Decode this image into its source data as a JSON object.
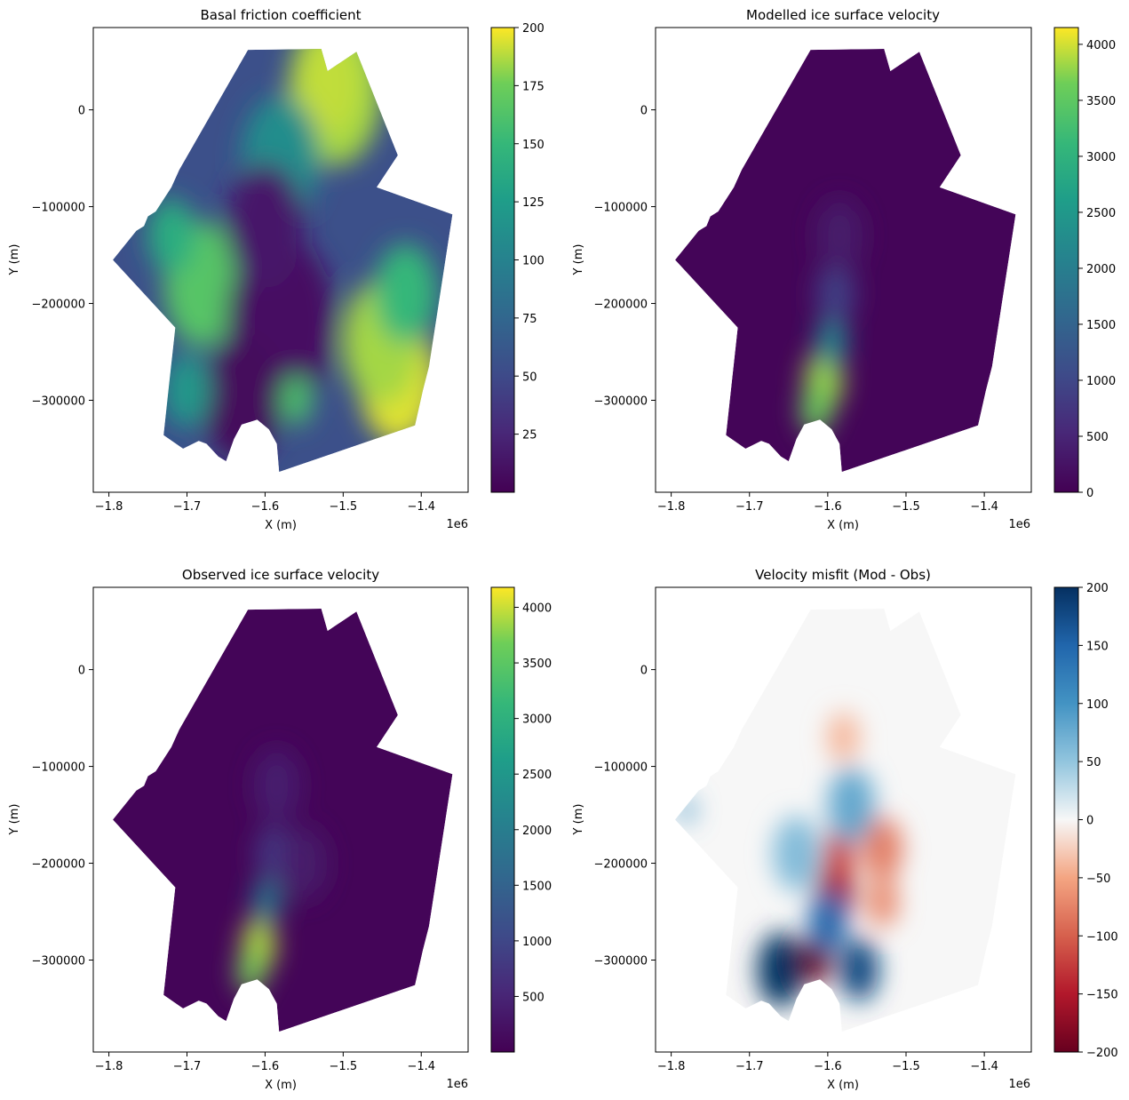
{
  "chart_data": [
    {
      "type": "heatmap",
      "title": "Basal friction coefficient",
      "xlabel": "X (m)",
      "ylabel": "Y (m)",
      "x_offset_label": "1e6",
      "xlim": [
        -1.82,
        -1.34
      ],
      "ylim": [
        -395000,
        85000
      ],
      "xticks": [
        -1.8,
        -1.7,
        -1.6,
        -1.5,
        -1.4
      ],
      "xtick_labels": [
        "−1.8",
        "−1.7",
        "−1.6",
        "−1.5",
        "−1.4"
      ],
      "yticks": [
        0,
        -100000,
        -200000,
        -300000
      ],
      "ytick_labels": [
        "0",
        "−100000",
        "−200000",
        "−300000"
      ],
      "colormap": "viridis",
      "cmin": 0,
      "cmax": 200,
      "colorbar_ticks": [
        25,
        50,
        75,
        100,
        125,
        150,
        175,
        200
      ],
      "colorbar_tick_labels": [
        "25",
        "50",
        "75",
        "100",
        "125",
        "150",
        "175",
        "200"
      ],
      "base_value": 55,
      "features": [
        {
          "x": -1.51,
          "y": 20000,
          "v": 185,
          "r": 0.06
        },
        {
          "x": -1.52,
          "y": 25000,
          "v": 190,
          "r": 0.04
        },
        {
          "x": -1.43,
          "y": -280000,
          "v": 195,
          "r": 0.05
        },
        {
          "x": -1.45,
          "y": -240000,
          "v": 185,
          "r": 0.05
        },
        {
          "x": -1.42,
          "y": -190000,
          "v": 150,
          "r": 0.04
        },
        {
          "x": -1.68,
          "y": -180000,
          "v": 165,
          "r": 0.05
        },
        {
          "x": -1.72,
          "y": -130000,
          "v": 140,
          "r": 0.03
        },
        {
          "x": -1.58,
          "y": -50000,
          "v": 110,
          "r": 0.05
        },
        {
          "x": -1.58,
          "y": -220000,
          "v": 10,
          "r": 0.07
        },
        {
          "x": -1.6,
          "y": -120000,
          "v": 15,
          "r": 0.05
        },
        {
          "x": -1.63,
          "y": -300000,
          "v": 5,
          "r": 0.05
        },
        {
          "x": -1.56,
          "y": -300000,
          "v": 160,
          "r": 0.02
        },
        {
          "x": -1.7,
          "y": -290000,
          "v": 120,
          "r": 0.03
        }
      ]
    },
    {
      "type": "heatmap",
      "title": "Modelled ice surface velocity",
      "xlabel": "X (m)",
      "ylabel": "Y (m)",
      "x_offset_label": "1e6",
      "xlim": [
        -1.82,
        -1.34
      ],
      "ylim": [
        -395000,
        85000
      ],
      "xticks": [
        -1.8,
        -1.7,
        -1.6,
        -1.5,
        -1.4
      ],
      "xtick_labels": [
        "−1.8",
        "−1.7",
        "−1.6",
        "−1.5",
        "−1.4"
      ],
      "yticks": [
        0,
        -100000,
        -200000,
        -300000
      ],
      "ytick_labels": [
        "0",
        "−100000",
        "−200000",
        "−300000"
      ],
      "colormap": "viridis",
      "cmin": 0,
      "cmax": 4150,
      "colorbar_ticks": [
        0,
        500,
        1000,
        1500,
        2000,
        2500,
        3000,
        3500,
        4000
      ],
      "colorbar_tick_labels": [
        "0",
        "500",
        "1000",
        "1500",
        "2000",
        "2500",
        "3000",
        "3500",
        "4000"
      ],
      "base_value": 60,
      "features": [
        {
          "x": -1.605,
          "y": -280000,
          "v": 3800,
          "r": 0.025
        },
        {
          "x": -1.615,
          "y": -310000,
          "v": 3600,
          "r": 0.02
        },
        {
          "x": -1.595,
          "y": -240000,
          "v": 2200,
          "r": 0.02
        },
        {
          "x": -1.59,
          "y": -190000,
          "v": 900,
          "r": 0.025
        },
        {
          "x": -1.585,
          "y": -130000,
          "v": 350,
          "r": 0.03
        }
      ]
    },
    {
      "type": "heatmap",
      "title": "Observed ice surface velocity",
      "xlabel": "X (m)",
      "ylabel": "Y (m)",
      "x_offset_label": "1e6",
      "xlim": [
        -1.82,
        -1.34
      ],
      "ylim": [
        -395000,
        85000
      ],
      "xticks": [
        -1.8,
        -1.7,
        -1.6,
        -1.5,
        -1.4
      ],
      "xtick_labels": [
        "−1.8",
        "−1.7",
        "−1.6",
        "−1.5",
        "−1.4"
      ],
      "yticks": [
        0,
        -100000,
        -200000,
        -300000
      ],
      "ytick_labels": [
        "0",
        "−100000",
        "−200000",
        "−300000"
      ],
      "colormap": "viridis",
      "cmin": 0,
      "cmax": 4180,
      "colorbar_ticks": [
        500,
        1000,
        1500,
        2000,
        2500,
        3000,
        3500,
        4000
      ],
      "colorbar_tick_labels": [
        "500",
        "1000",
        "1500",
        "2000",
        "2500",
        "3000",
        "3500",
        "4000"
      ],
      "base_value": 60,
      "features": [
        {
          "x": -1.608,
          "y": -285000,
          "v": 3900,
          "r": 0.022
        },
        {
          "x": -1.618,
          "y": -312000,
          "v": 3700,
          "r": 0.018
        },
        {
          "x": -1.598,
          "y": -240000,
          "v": 2000,
          "r": 0.018
        },
        {
          "x": -1.59,
          "y": -190000,
          "v": 800,
          "r": 0.022
        },
        {
          "x": -1.585,
          "y": -120000,
          "v": 400,
          "r": 0.03
        },
        {
          "x": -1.55,
          "y": -200000,
          "v": 350,
          "r": 0.03
        }
      ]
    },
    {
      "type": "heatmap",
      "title": "Velocity misfit (Mod - Obs)",
      "xlabel": "X (m)",
      "ylabel": "Y (m)",
      "x_offset_label": "1e6",
      "xlim": [
        -1.82,
        -1.34
      ],
      "ylim": [
        -395000,
        85000
      ],
      "xticks": [
        -1.8,
        -1.7,
        -1.6,
        -1.5,
        -1.4
      ],
      "xtick_labels": [
        "−1.8",
        "−1.7",
        "−1.6",
        "−1.5",
        "−1.4"
      ],
      "yticks": [
        0,
        -100000,
        -200000,
        -300000
      ],
      "ytick_labels": [
        "0",
        "−100000",
        "−200000",
        "−300000"
      ],
      "colormap": "RdBu",
      "cmin": -200,
      "cmax": 200,
      "colorbar_ticks": [
        -200,
        -150,
        -100,
        -50,
        0,
        50,
        100,
        150,
        200
      ],
      "colorbar_tick_labels": [
        "−200",
        "−150",
        "−100",
        "−50",
        "0",
        "50",
        "100",
        "150",
        "200"
      ],
      "base_value": 0,
      "features": [
        {
          "x": -1.66,
          "y": -310000,
          "v": 200,
          "r": 0.03
        },
        {
          "x": -1.56,
          "y": -310000,
          "v": 180,
          "r": 0.025
        },
        {
          "x": -1.615,
          "y": -300000,
          "v": -200,
          "r": 0.02
        },
        {
          "x": -1.59,
          "y": -230000,
          "v": -160,
          "r": 0.025
        },
        {
          "x": -1.585,
          "y": -190000,
          "v": -120,
          "r": 0.02
        },
        {
          "x": -1.53,
          "y": -185000,
          "v": -80,
          "r": 0.025
        },
        {
          "x": -1.53,
          "y": -240000,
          "v": -70,
          "r": 0.02
        },
        {
          "x": -1.6,
          "y": -260000,
          "v": 150,
          "r": 0.025
        },
        {
          "x": -1.57,
          "y": -140000,
          "v": 80,
          "r": 0.03
        },
        {
          "x": -1.58,
          "y": -70000,
          "v": -40,
          "r": 0.02
        },
        {
          "x": -1.64,
          "y": -190000,
          "v": 60,
          "r": 0.03
        },
        {
          "x": -1.78,
          "y": -145000,
          "v": 90,
          "r": 0.01
        }
      ]
    }
  ],
  "domain_outline": [
    [
      -1.622,
      62000
    ],
    [
      -1.528,
      63000
    ],
    [
      -1.52,
      40000
    ],
    [
      -1.483,
      60000
    ],
    [
      -1.43,
      -47000
    ],
    [
      -1.457,
      -80000
    ],
    [
      -1.36,
      -108000
    ],
    [
      -1.39,
      -265000
    ],
    [
      -1.398,
      -290000
    ],
    [
      -1.408,
      -326000
    ],
    [
      -1.582,
      -374000
    ],
    [
      -1.585,
      -345000
    ],
    [
      -1.595,
      -330000
    ],
    [
      -1.61,
      -320000
    ],
    [
      -1.63,
      -325000
    ],
    [
      -1.64,
      -340000
    ],
    [
      -1.65,
      -363000
    ],
    [
      -1.66,
      -358000
    ],
    [
      -1.675,
      -345000
    ],
    [
      -1.685,
      -342000
    ],
    [
      -1.705,
      -350000
    ],
    [
      -1.73,
      -336000
    ],
    [
      -1.715,
      -225000
    ],
    [
      -1.795,
      -155000
    ],
    [
      -1.765,
      -125000
    ],
    [
      -1.755,
      -120000
    ],
    [
      -1.75,
      -110000
    ],
    [
      -1.74,
      -105000
    ],
    [
      -1.72,
      -80000
    ],
    [
      -1.71,
      -62000
    ]
  ]
}
